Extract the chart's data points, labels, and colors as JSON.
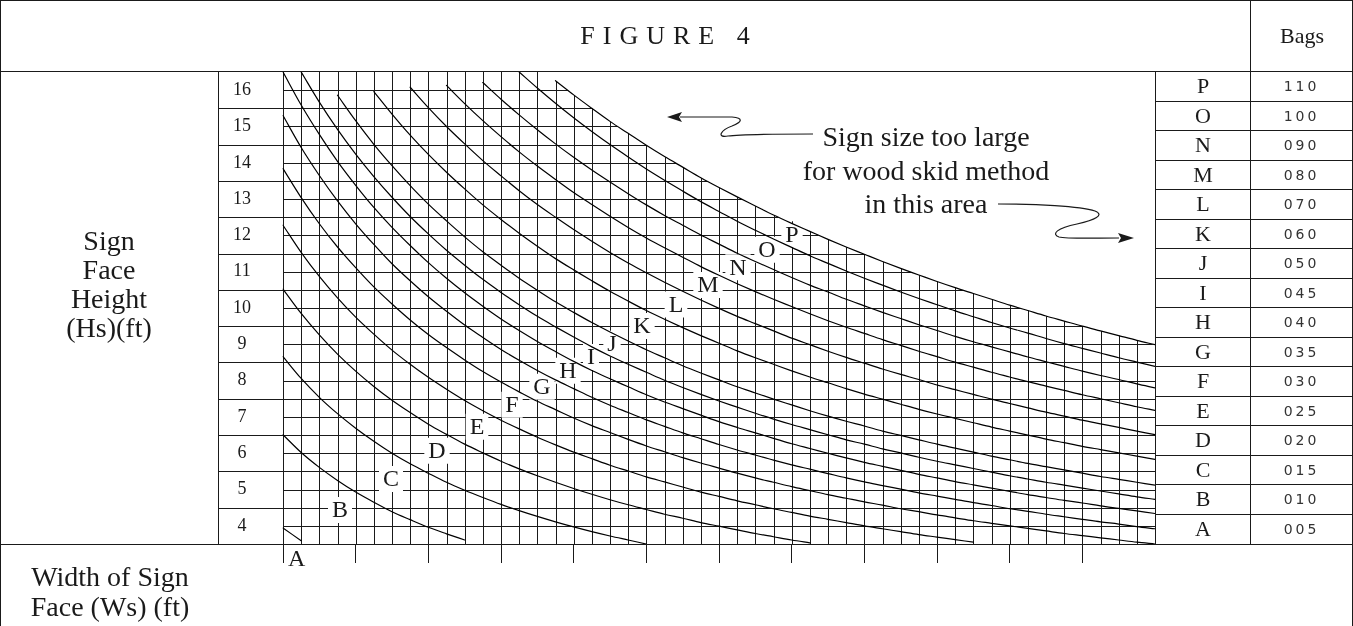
{
  "chart_data": [
    {
      "type": "line",
      "title": "FIGURE 4",
      "xlabel": "Width of Sign Face (Ws) (ft)",
      "ylabel": "Sign Face Height (Hs)(ft)",
      "annotations": [
        "Sign size too large",
        "for wood skid method",
        "in this area"
      ],
      "categories": [
        null,
        null,
        null,
        null,
        null,
        null,
        null,
        null,
        null,
        null,
        null,
        null,
        null,
        null,
        null,
        null,
        null,
        null,
        null,
        null,
        null,
        null,
        null,
        null,
        null,
        null,
        null,
        null,
        null,
        null,
        null,
        null,
        null,
        null,
        null,
        null,
        null,
        null,
        null,
        null,
        null,
        null,
        null,
        null,
        null,
        null,
        null,
        null,
        null
      ],
      "series": [
        {
          "name": "A",
          "color": "#000000",
          "values": [
            3.94,
            3.59,
            null,
            null,
            null,
            null,
            null,
            null,
            null,
            null,
            null,
            null,
            null,
            null,
            null,
            null,
            null,
            null,
            null,
            null,
            null,
            null,
            null,
            null,
            null,
            null,
            null,
            null,
            null,
            null,
            null,
            null,
            null,
            null,
            null,
            null,
            null,
            null,
            null,
            null,
            null,
            null,
            null,
            null,
            null,
            null,
            null,
            null,
            null
          ]
        },
        {
          "name": "B",
          "color": "#000000",
          "values": [
            6.51,
            6.02,
            5.61,
            5.25,
            4.93,
            4.65,
            4.39,
            4.17,
            3.96,
            3.78,
            3.61,
            null,
            null,
            null,
            null,
            null,
            null,
            null,
            null,
            null,
            null,
            null,
            null,
            null,
            null,
            null,
            null,
            null,
            null,
            null,
            null,
            null,
            null,
            null,
            null,
            null,
            null,
            null,
            null,
            null,
            null,
            null,
            null,
            null,
            null,
            null,
            null,
            null,
            null
          ]
        },
        {
          "name": "C",
          "color": "#000000",
          "values": [
            8.66,
            8.06,
            7.54,
            7.09,
            6.69,
            6.33,
            6.0,
            5.71,
            5.45,
            5.2,
            4.98,
            4.78,
            4.59,
            4.42,
            4.26,
            4.11,
            3.97,
            3.84,
            3.72,
            3.61,
            3.5,
            null,
            null,
            null,
            null,
            null,
            null,
            null,
            null,
            null,
            null,
            null,
            null,
            null,
            null,
            null,
            null,
            null,
            null,
            null,
            null,
            null,
            null,
            null,
            null,
            null,
            null,
            null,
            null
          ]
        },
        {
          "name": "D",
          "color": "#000000",
          "values": [
            10.52,
            9.85,
            9.26,
            8.73,
            8.26,
            7.84,
            7.46,
            7.12,
            6.8,
            6.52,
            6.25,
            6.01,
            5.78,
            5.57,
            5.38,
            5.2,
            5.03,
            4.87,
            4.72,
            4.58,
            4.45,
            4.32,
            4.21,
            4.09,
            3.99,
            3.89,
            3.79,
            3.7,
            3.61,
            3.53,
            null,
            null,
            null,
            null,
            null,
            null,
            null,
            null,
            null,
            null,
            null,
            null,
            null,
            null,
            null,
            null,
            null,
            null,
            null
          ]
        },
        {
          "name": "E",
          "color": "#000000",
          "values": [
            12.28,
            11.53,
            10.87,
            10.28,
            9.75,
            9.28,
            8.84,
            8.45,
            8.09,
            7.76,
            7.45,
            7.17,
            6.91,
            6.67,
            6.44,
            6.23,
            6.03,
            5.85,
            5.67,
            5.51,
            5.35,
            5.21,
            5.07,
            4.93,
            4.81,
            4.69,
            4.58,
            4.47,
            4.37,
            4.27,
            4.18,
            4.09,
            4.0,
            3.92,
            3.84,
            3.76,
            3.69,
            3.62,
            3.55,
            null,
            null,
            null,
            null,
            null,
            null,
            null,
            null,
            null,
            null
          ]
        },
        {
          "name": "F",
          "color": "#000000",
          "values": [
            13.84,
            13.04,
            12.32,
            11.68,
            11.11,
            10.58,
            10.11,
            9.67,
            9.27,
            8.91,
            8.57,
            8.25,
            7.96,
            7.69,
            7.43,
            7.2,
            6.97,
            6.76,
            6.57,
            6.38,
            6.2,
            6.04,
            5.88,
            5.73,
            5.59,
            5.45,
            5.32,
            5.2,
            5.08,
            4.97,
            4.86,
            4.76,
            4.66,
            4.57,
            4.47,
            4.39,
            4.3,
            4.22,
            4.14,
            4.07,
            4.0,
            3.93,
            3.86,
            3.79,
            3.73,
            3.67,
            3.61,
            3.55,
            3.5
          ]
        },
        {
          "name": "G",
          "color": "#000000",
          "values": [
            15.3,
            14.42,
            13.65,
            12.95,
            12.32,
            11.75,
            11.22,
            10.75,
            10.31,
            9.91,
            9.53,
            9.19,
            8.86,
            8.56,
            8.28,
            8.02,
            7.78,
            7.54,
            7.32,
            7.12,
            6.92,
            6.74,
            6.56,
            6.4,
            6.24,
            6.09,
            5.95,
            5.81,
            5.68,
            5.56,
            5.44,
            5.32,
            5.21,
            5.11,
            5.01,
            4.91,
            4.82,
            4.73,
            4.64,
            4.56,
            4.47,
            4.4,
            4.32,
            4.25,
            4.18,
            4.11,
            4.05,
            3.98,
            3.92
          ]
        },
        {
          "name": "H",
          "color": "#000000",
          "values": [
            16.5,
            15.59,
            14.78,
            14.04,
            13.38,
            12.77,
            12.22,
            11.72,
            11.25,
            10.82,
            10.42,
            10.05,
            9.7,
            9.38,
            9.08,
            8.8,
            8.53,
            8.28,
            8.05,
            7.83,
            7.61,
            7.41,
            7.23,
            7.05,
            6.87,
            6.71,
            6.56,
            6.41,
            6.26,
            6.13,
            6.0,
            5.87,
            5.75,
            5.64,
            5.53,
            5.42,
            5.32,
            5.22,
            5.13,
            5.04,
            4.95,
            4.86,
            4.78,
            4.7,
            4.63,
            4.55,
            4.48,
            4.41,
            4.34
          ]
        },
        {
          "name": "I",
          "color": "#000000",
          "values": [
            null,
            16.5,
            15.67,
            14.92,
            14.24,
            13.62,
            13.05,
            12.52,
            12.04,
            11.59,
            11.18,
            10.79,
            10.43,
            10.09,
            9.77,
            9.48,
            9.2,
            8.93,
            8.68,
            8.45,
            8.23,
            8.01,
            7.81,
            7.62,
            7.44,
            7.27,
            7.1,
            6.94,
            6.79,
            6.65,
            6.51,
            6.37,
            6.25,
            6.12,
            6.01,
            5.89,
            5.78,
            5.68,
            5.58,
            5.48,
            5.38,
            5.29,
            5.2,
            5.12,
            5.04,
            4.96,
            4.88,
            4.8,
            4.73
          ]
        },
        {
          "name": "J",
          "color": "#000000",
          "values": [
            null,
            null,
            null,
            15.86,
            15.16,
            14.51,
            13.92,
            13.37,
            12.86,
            12.4,
            11.96,
            11.55,
            11.18,
            10.82,
            10.49,
            10.17,
            9.88,
            9.6,
            9.34,
            9.09,
            8.85,
            8.63,
            8.41,
            8.21,
            8.02,
            7.83,
            7.66,
            7.49,
            7.33,
            7.17,
            7.02,
            6.88,
            6.75,
            6.61,
            6.49,
            6.37,
            6.25,
            6.14,
            6.03,
            5.92,
            5.82,
            5.72,
            5.63,
            5.54,
            5.45,
            5.36,
            5.28,
            5.2,
            5.12
          ]
        },
        {
          "name": "K",
          "color": "#000000",
          "values": [
            null,
            null,
            null,
            null,
            null,
            15.96,
            15.34,
            14.76,
            14.23,
            13.74,
            13.28,
            12.84,
            12.44,
            12.06,
            11.7,
            11.36,
            11.05,
            10.75,
            10.46,
            10.19,
            9.93,
            9.69,
            9.46,
            9.24,
            9.03,
            8.82,
            8.63,
            8.45,
            8.27,
            8.1,
            7.94,
            7.78,
            7.63,
            7.49,
            7.35,
            7.21,
            7.08,
            6.96,
            6.84,
            6.72,
            6.61,
            6.5,
            6.39,
            6.29,
            6.19,
            6.1,
            6.01,
            5.92,
            5.83
          ]
        },
        {
          "name": "L",
          "color": "#000000",
          "values": [
            null,
            null,
            null,
            null,
            null,
            null,
            null,
            16.08,
            15.52,
            15.0,
            14.52,
            14.06,
            13.64,
            13.23,
            12.85,
            12.5,
            12.16,
            11.84,
            11.53,
            11.24,
            10.97,
            10.71,
            10.46,
            10.22,
            9.99,
            9.77,
            9.57,
            9.37,
            9.17,
            8.99,
            8.81,
            8.64,
            8.48,
            8.32,
            8.17,
            8.03,
            7.88,
            7.75,
            7.62,
            7.49,
            7.37,
            7.25,
            7.13,
            7.02,
            6.91,
            6.81,
            6.71,
            6.61,
            6.51
          ]
        },
        {
          "name": "M",
          "color": "#000000",
          "values": [
            null,
            null,
            null,
            null,
            null,
            null,
            null,
            null,
            null,
            16.13,
            15.63,
            15.16,
            14.72,
            14.3,
            13.91,
            13.54,
            13.18,
            12.85,
            12.53,
            12.22,
            11.93,
            11.66,
            11.4,
            11.14,
            10.9,
            10.67,
            10.45,
            10.24,
            10.04,
            9.84,
            9.65,
            9.47,
            9.3,
            9.13,
            8.97,
            8.81,
            8.66,
            8.51,
            8.37,
            8.23,
            8.1,
            7.97,
            7.85,
            7.73,
            7.61,
            7.5,
            7.39,
            7.28,
            7.18
          ]
        },
        {
          "name": "N",
          "color": "#000000",
          "values": [
            null,
            null,
            null,
            null,
            null,
            null,
            null,
            null,
            null,
            null,
            null,
            16.21,
            15.75,
            15.32,
            14.91,
            14.52,
            14.15,
            13.8,
            13.47,
            13.15,
            12.84,
            12.55,
            12.28,
            12.01,
            11.76,
            11.51,
            11.28,
            11.06,
            10.84,
            10.63,
            10.44,
            10.24,
            10.06,
            9.88,
            9.71,
            9.54,
            9.38,
            9.22,
            9.07,
            8.93,
            8.79,
            8.65,
            8.52,
            8.39,
            8.26,
            8.14,
            8.03,
            7.91,
            7.8
          ]
        },
        {
          "name": "O",
          "color": "#000000",
          "values": [
            null,
            null,
            null,
            null,
            null,
            null,
            null,
            null,
            null,
            null,
            null,
            null,
            null,
            16.5,
            16.06,
            15.64,
            15.24,
            14.86,
            14.5,
            14.16,
            13.83,
            13.52,
            13.22,
            12.93,
            12.66,
            12.39,
            12.14,
            11.9,
            11.67,
            11.44,
            11.23,
            11.02,
            10.82,
            10.63,
            10.44,
            10.26,
            10.09,
            9.92,
            9.76,
            9.6,
            9.45,
            9.31,
            9.16,
            9.02,
            8.89,
            8.76,
            8.63,
            8.51,
            8.39
          ]
        },
        {
          "name": "P",
          "color": "#000000",
          "values": [
            null,
            null,
            null,
            null,
            null,
            null,
            null,
            null,
            null,
            null,
            null,
            null,
            null,
            null,
            null,
            16.26,
            15.87,
            15.5,
            15.14,
            14.81,
            14.48,
            14.17,
            13.88,
            13.59,
            13.32,
            13.06,
            12.81,
            12.56,
            12.33,
            12.11,
            11.89,
            11.68,
            11.48,
            11.28,
            11.09,
            10.91,
            10.73,
            10.56,
            10.4,
            10.24,
            10.08,
            9.93,
            9.78,
            9.64,
            9.5,
            9.37,
            9.24,
            9.11,
            8.99
          ]
        }
      ],
      "ylim": [
        3.5,
        16.5
      ],
      "yticks": [
        4,
        {
          "value": 4.5,
          "label": null
        },
        5,
        {
          "value": 5.5,
          "label": null
        },
        6,
        {
          "value": 6.5,
          "label": null
        },
        7,
        {
          "value": 7.5,
          "label": null
        },
        8,
        {
          "value": 8.5,
          "label": null
        },
        9,
        {
          "value": 9.5,
          "label": null
        },
        10,
        {
          "value": 10.5,
          "label": null
        },
        11,
        {
          "value": 11.5,
          "label": null
        },
        12,
        {
          "value": 12.5,
          "label": null
        },
        13,
        {
          "value": 13.5,
          "label": null
        },
        14,
        {
          "value": 14.5,
          "label": null
        },
        15,
        {
          "value": 15.5,
          "label": null
        },
        16
      ],
      "grid": true,
      "tick_labels": "y"
    },
    {
      "type": "other",
      "title": "Bags",
      "categories": [
        "P",
        "O",
        "N",
        "M",
        "L",
        "K",
        "J",
        "I",
        "H",
        "G",
        "F",
        "E",
        "D",
        "C",
        "B",
        "A"
      ],
      "values": [
        110,
        100,
        90,
        80,
        70,
        60,
        50,
        45,
        40,
        35,
        30,
        25,
        20,
        15,
        10,
        5
      ],
      "value_labels": [
        "110",
        "100",
        "090",
        "080",
        "070",
        "060",
        "050",
        "045",
        "040",
        "035",
        "030",
        "025",
        "020",
        "015",
        "010",
        "005"
      ]
    }
  ]
}
